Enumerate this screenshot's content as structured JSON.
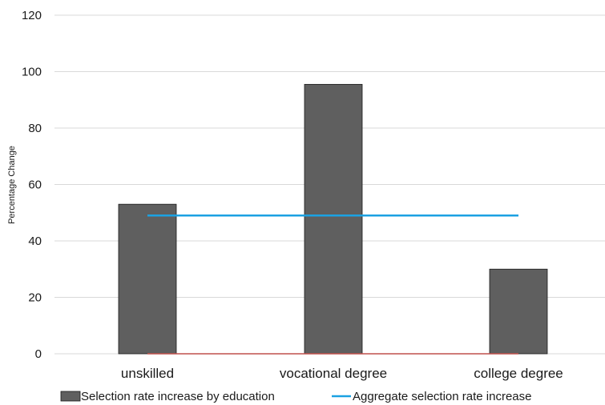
{
  "chart_data": {
    "type": "bar",
    "categories": [
      "unskilled",
      "vocational degree",
      "college degree"
    ],
    "series": [
      {
        "name": "Selection rate increase by education",
        "kind": "bar",
        "color": "#5f5f5f",
        "values": [
          53,
          95.5,
          30
        ]
      },
      {
        "name": "Aggregate selection rate increase",
        "kind": "line",
        "color": "#1ba1e2",
        "values": [
          49,
          49,
          49
        ]
      }
    ],
    "baseline": {
      "value": 0,
      "color": "#c0504d"
    },
    "ylabel": "Percentage Change",
    "ylim": [
      0,
      120
    ],
    "yticks": [
      0,
      20,
      40,
      60,
      80,
      100,
      120
    ],
    "grid": true,
    "legend_position": "bottom"
  }
}
